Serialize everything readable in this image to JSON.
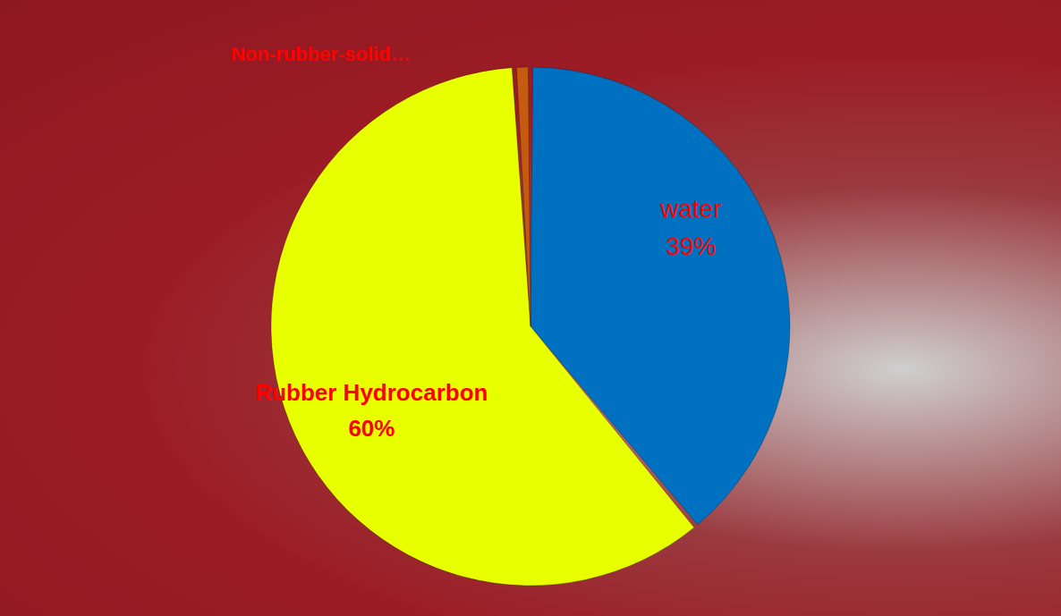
{
  "chart_data": {
    "type": "pie",
    "categories": [
      "water",
      "Rubber Hydrocarbon",
      "Non-rubber-solid…"
    ],
    "values": [
      39,
      60,
      1
    ],
    "value_labels": [
      "39%",
      "60%",
      null
    ],
    "colors": [
      "#0070c0",
      "#e8ff00",
      "#c55a11"
    ],
    "data_labels": true
  }
}
